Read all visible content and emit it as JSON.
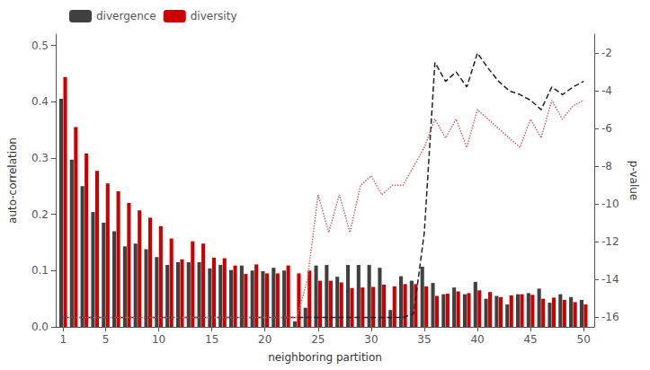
{
  "chart_data": {
    "type": "bar",
    "xlabel": "neighboring partition",
    "ylabel": "auto-correlation",
    "y2label": "p-value",
    "x": [
      1,
      2,
      3,
      4,
      5,
      6,
      7,
      8,
      9,
      10,
      11,
      12,
      13,
      14,
      15,
      16,
      17,
      18,
      19,
      20,
      21,
      22,
      23,
      24,
      25,
      26,
      27,
      28,
      29,
      30,
      31,
      32,
      33,
      34,
      35,
      36,
      37,
      38,
      39,
      40,
      41,
      42,
      43,
      44,
      45,
      46,
      47,
      48,
      49,
      50
    ],
    "series": [
      {
        "name": "divergence",
        "color": "#404040",
        "values": [
          0.405,
          0.297,
          0.25,
          0.204,
          0.185,
          0.17,
          0.143,
          0.148,
          0.138,
          0.124,
          0.11,
          0.115,
          0.115,
          0.115,
          0.104,
          0.11,
          0.101,
          0.109,
          0.1,
          0.099,
          0.105,
          0.1,
          0.01,
          0.034,
          0.109,
          0.11,
          0.089,
          0.11,
          0.11,
          0.11,
          0.105,
          0.03,
          0.09,
          0.082,
          0.107,
          0.078,
          0.058,
          0.07,
          0.058,
          0.08,
          0.05,
          0.055,
          0.04,
          0.058,
          0.06,
          0.068,
          0.043,
          0.058,
          0.053,
          0.048
        ]
      },
      {
        "name": "diversity",
        "color": "#cc0000",
        "values": [
          0.444,
          0.355,
          0.308,
          0.277,
          0.255,
          0.241,
          0.22,
          0.207,
          0.194,
          0.179,
          0.157,
          0.12,
          0.152,
          0.148,
          0.123,
          0.122,
          0.109,
          0.094,
          0.111,
          0.095,
          0.095,
          0.109,
          0.095,
          0.1,
          0.082,
          0.082,
          0.079,
          0.069,
          0.07,
          0.071,
          0.075,
          0.072,
          0.076,
          0.076,
          0.072,
          0.055,
          0.059,
          0.063,
          0.06,
          0.065,
          0.062,
          0.053,
          0.056,
          0.058,
          0.057,
          0.05,
          0.052,
          0.048,
          0.044,
          0.04
        ]
      },
      {
        "type": "line",
        "axis": "y2",
        "color": "#222222",
        "line_style": "dashed",
        "values": [
          -16.0,
          -16.0,
          -16.0,
          -16.0,
          -16.0,
          -16.0,
          -16.0,
          -16.0,
          -16.0,
          -16.0,
          -16.0,
          -16.0,
          -16.0,
          -16.0,
          -16.0,
          -16.0,
          -16.0,
          -16.0,
          -16.0,
          -16.0,
          -16.0,
          -16.0,
          -16.0,
          -16.0,
          -16.0,
          -16.0,
          -16.0,
          -16.0,
          -16.0,
          -16.0,
          -16.0,
          -16.0,
          -16.0,
          -15.8,
          -11.5,
          -2.5,
          -3.5,
          -3.0,
          -3.8,
          -2.0,
          -2.8,
          -3.5,
          -4.0,
          -4.2,
          -4.5,
          -5.0,
          -3.8,
          -4.2,
          -3.8,
          -3.5
        ]
      },
      {
        "type": "line",
        "axis": "y2",
        "color": "#cc6666",
        "line_style": "dotted",
        "values": [
          -16.0,
          -16.0,
          -16.0,
          -16.0,
          -16.0,
          -16.0,
          -16.0,
          -16.0,
          -16.0,
          -16.0,
          -16.0,
          -16.0,
          -16.0,
          -16.0,
          -16.0,
          -16.0,
          -16.0,
          -16.0,
          -16.0,
          -16.0,
          -16.0,
          -16.0,
          -16.0,
          -14.0,
          -9.5,
          -11.5,
          -9.5,
          -11.5,
          -9.0,
          -8.5,
          -9.5,
          -9.0,
          -9.0,
          -8.0,
          -7.0,
          -5.5,
          -6.5,
          -5.5,
          -7.0,
          -5.0,
          -5.5,
          -6.0,
          -6.5,
          -7.0,
          -5.5,
          -6.5,
          -4.5,
          -5.5,
          -4.8,
          -4.5
        ]
      }
    ],
    "xlim": [
      0.3,
      51.0
    ],
    "xticks": [
      1,
      5,
      10,
      15,
      20,
      25,
      30,
      35,
      40,
      45,
      50
    ],
    "ylim": [
      0.0,
      0.52
    ],
    "yticks": [
      {
        "value": 0.0,
        "label": "0.0"
      },
      0.1,
      0.2,
      0.3,
      0.4,
      0.5
    ],
    "y2lim": [
      -16.5,
      -1.0
    ],
    "y2ticks": [
      -16,
      -14,
      -12,
      -10,
      -8,
      -6,
      -4,
      -2
    ],
    "legend": "upper left",
    "grid": false
  }
}
